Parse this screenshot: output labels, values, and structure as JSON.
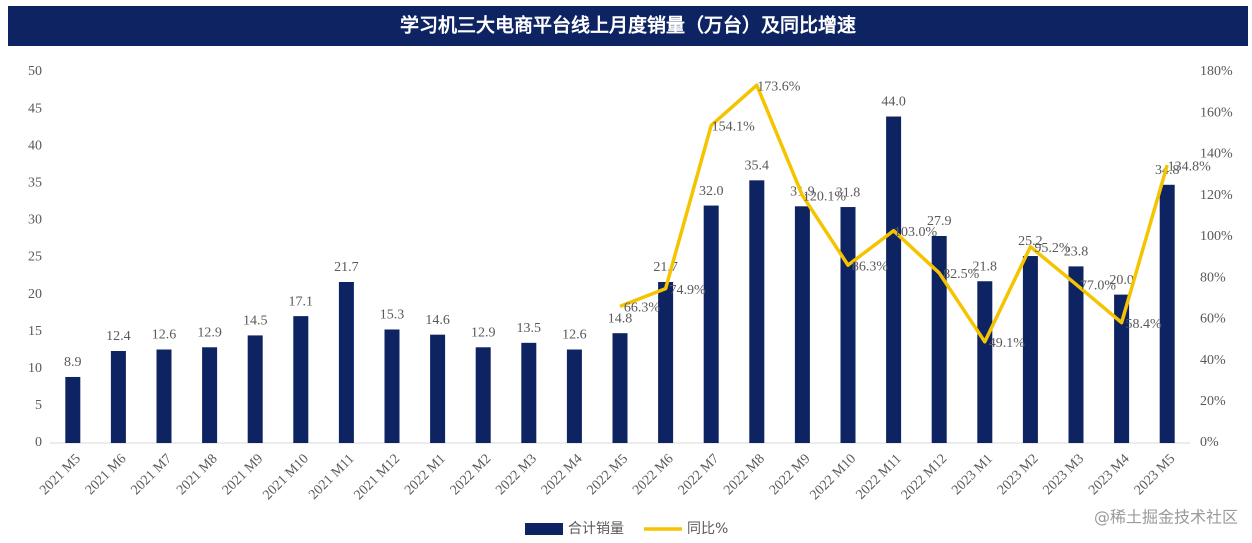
{
  "chart_data": {
    "type": "bar_line",
    "title": "学习机三大电商平台线上月度销量（万台）及同比增速",
    "categories": [
      "2021 M5",
      "2021 M6",
      "2021 M7",
      "2021 M8",
      "2021 M9",
      "2021 M10",
      "2021 M11",
      "2021 M12",
      "2022 M1",
      "2022 M2",
      "2022 M3",
      "2022 M4",
      "2022 M5",
      "2022 M6",
      "2022 M7",
      "2022 M8",
      "2022 M9",
      "2022 M10",
      "2022 M11",
      "2022 M12",
      "2023 M1",
      "2023 M2",
      "2023 M3",
      "2023 M4",
      "2023 M5"
    ],
    "series": [
      {
        "name": "合计销量",
        "type": "bar",
        "color": "#0e2462",
        "values": [
          8.9,
          12.4,
          12.6,
          12.9,
          14.5,
          17.1,
          21.7,
          15.3,
          14.6,
          12.9,
          13.5,
          12.6,
          14.8,
          21.7,
          32.0,
          35.4,
          31.9,
          31.8,
          44.0,
          27.9,
          21.8,
          25.2,
          23.8,
          20.0,
          34.8
        ],
        "value_labels": [
          "8.9",
          "12.4",
          "12.6",
          "12.9",
          "14.5",
          "17.1",
          "21.7",
          "15.3",
          "14.6",
          "12.9",
          "13.5",
          "12.6",
          "14.8",
          "21.7",
          "32.0",
          "35.4",
          "31.9",
          "31.8",
          "44.0",
          "27.9",
          "21.8",
          "25.2",
          "23.8",
          "20.0",
          "34.8"
        ]
      },
      {
        "name": "同比%",
        "type": "line",
        "axis": "y2",
        "color": "#f5c400",
        "values": [
          null,
          null,
          null,
          null,
          null,
          null,
          null,
          null,
          null,
          null,
          null,
          null,
          66.3,
          74.9,
          154.1,
          173.6,
          120.1,
          86.3,
          103.0,
          82.5,
          49.1,
          95.2,
          77.0,
          58.4,
          134.8
        ],
        "value_labels": [
          null,
          null,
          null,
          null,
          null,
          null,
          null,
          null,
          null,
          null,
          null,
          null,
          "66.3%",
          "74.9%",
          "154.1%",
          "173.6%",
          "120.1%",
          "86.3%",
          "103.0%",
          "82.5%",
          "49.1%",
          "95.2%",
          "77.0%",
          "58.4%",
          "134.8%"
        ]
      }
    ],
    "ylim": [
      0,
      50
    ],
    "yticks": [
      0,
      5,
      10,
      15,
      20,
      25,
      30,
      35,
      40,
      45,
      50
    ],
    "y2lim": [
      0,
      180
    ],
    "y2ticks": [
      {
        "value": 0,
        "label": "0%"
      },
      {
        "value": 20,
        "label": "20%"
      },
      {
        "value": 40,
        "label": "40%"
      },
      {
        "value": 60,
        "label": "60%"
      },
      {
        "value": 80,
        "label": "80%"
      },
      {
        "value": 100,
        "label": "100%"
      },
      {
        "value": 120,
        "label": "120%"
      },
      {
        "value": 140,
        "label": "140%"
      },
      {
        "value": 160,
        "label": "160%"
      },
      {
        "value": 180,
        "label": "180%"
      }
    ],
    "legend": "bottom",
    "grid": false,
    "watermark": "@稀土掘金技术社区"
  }
}
